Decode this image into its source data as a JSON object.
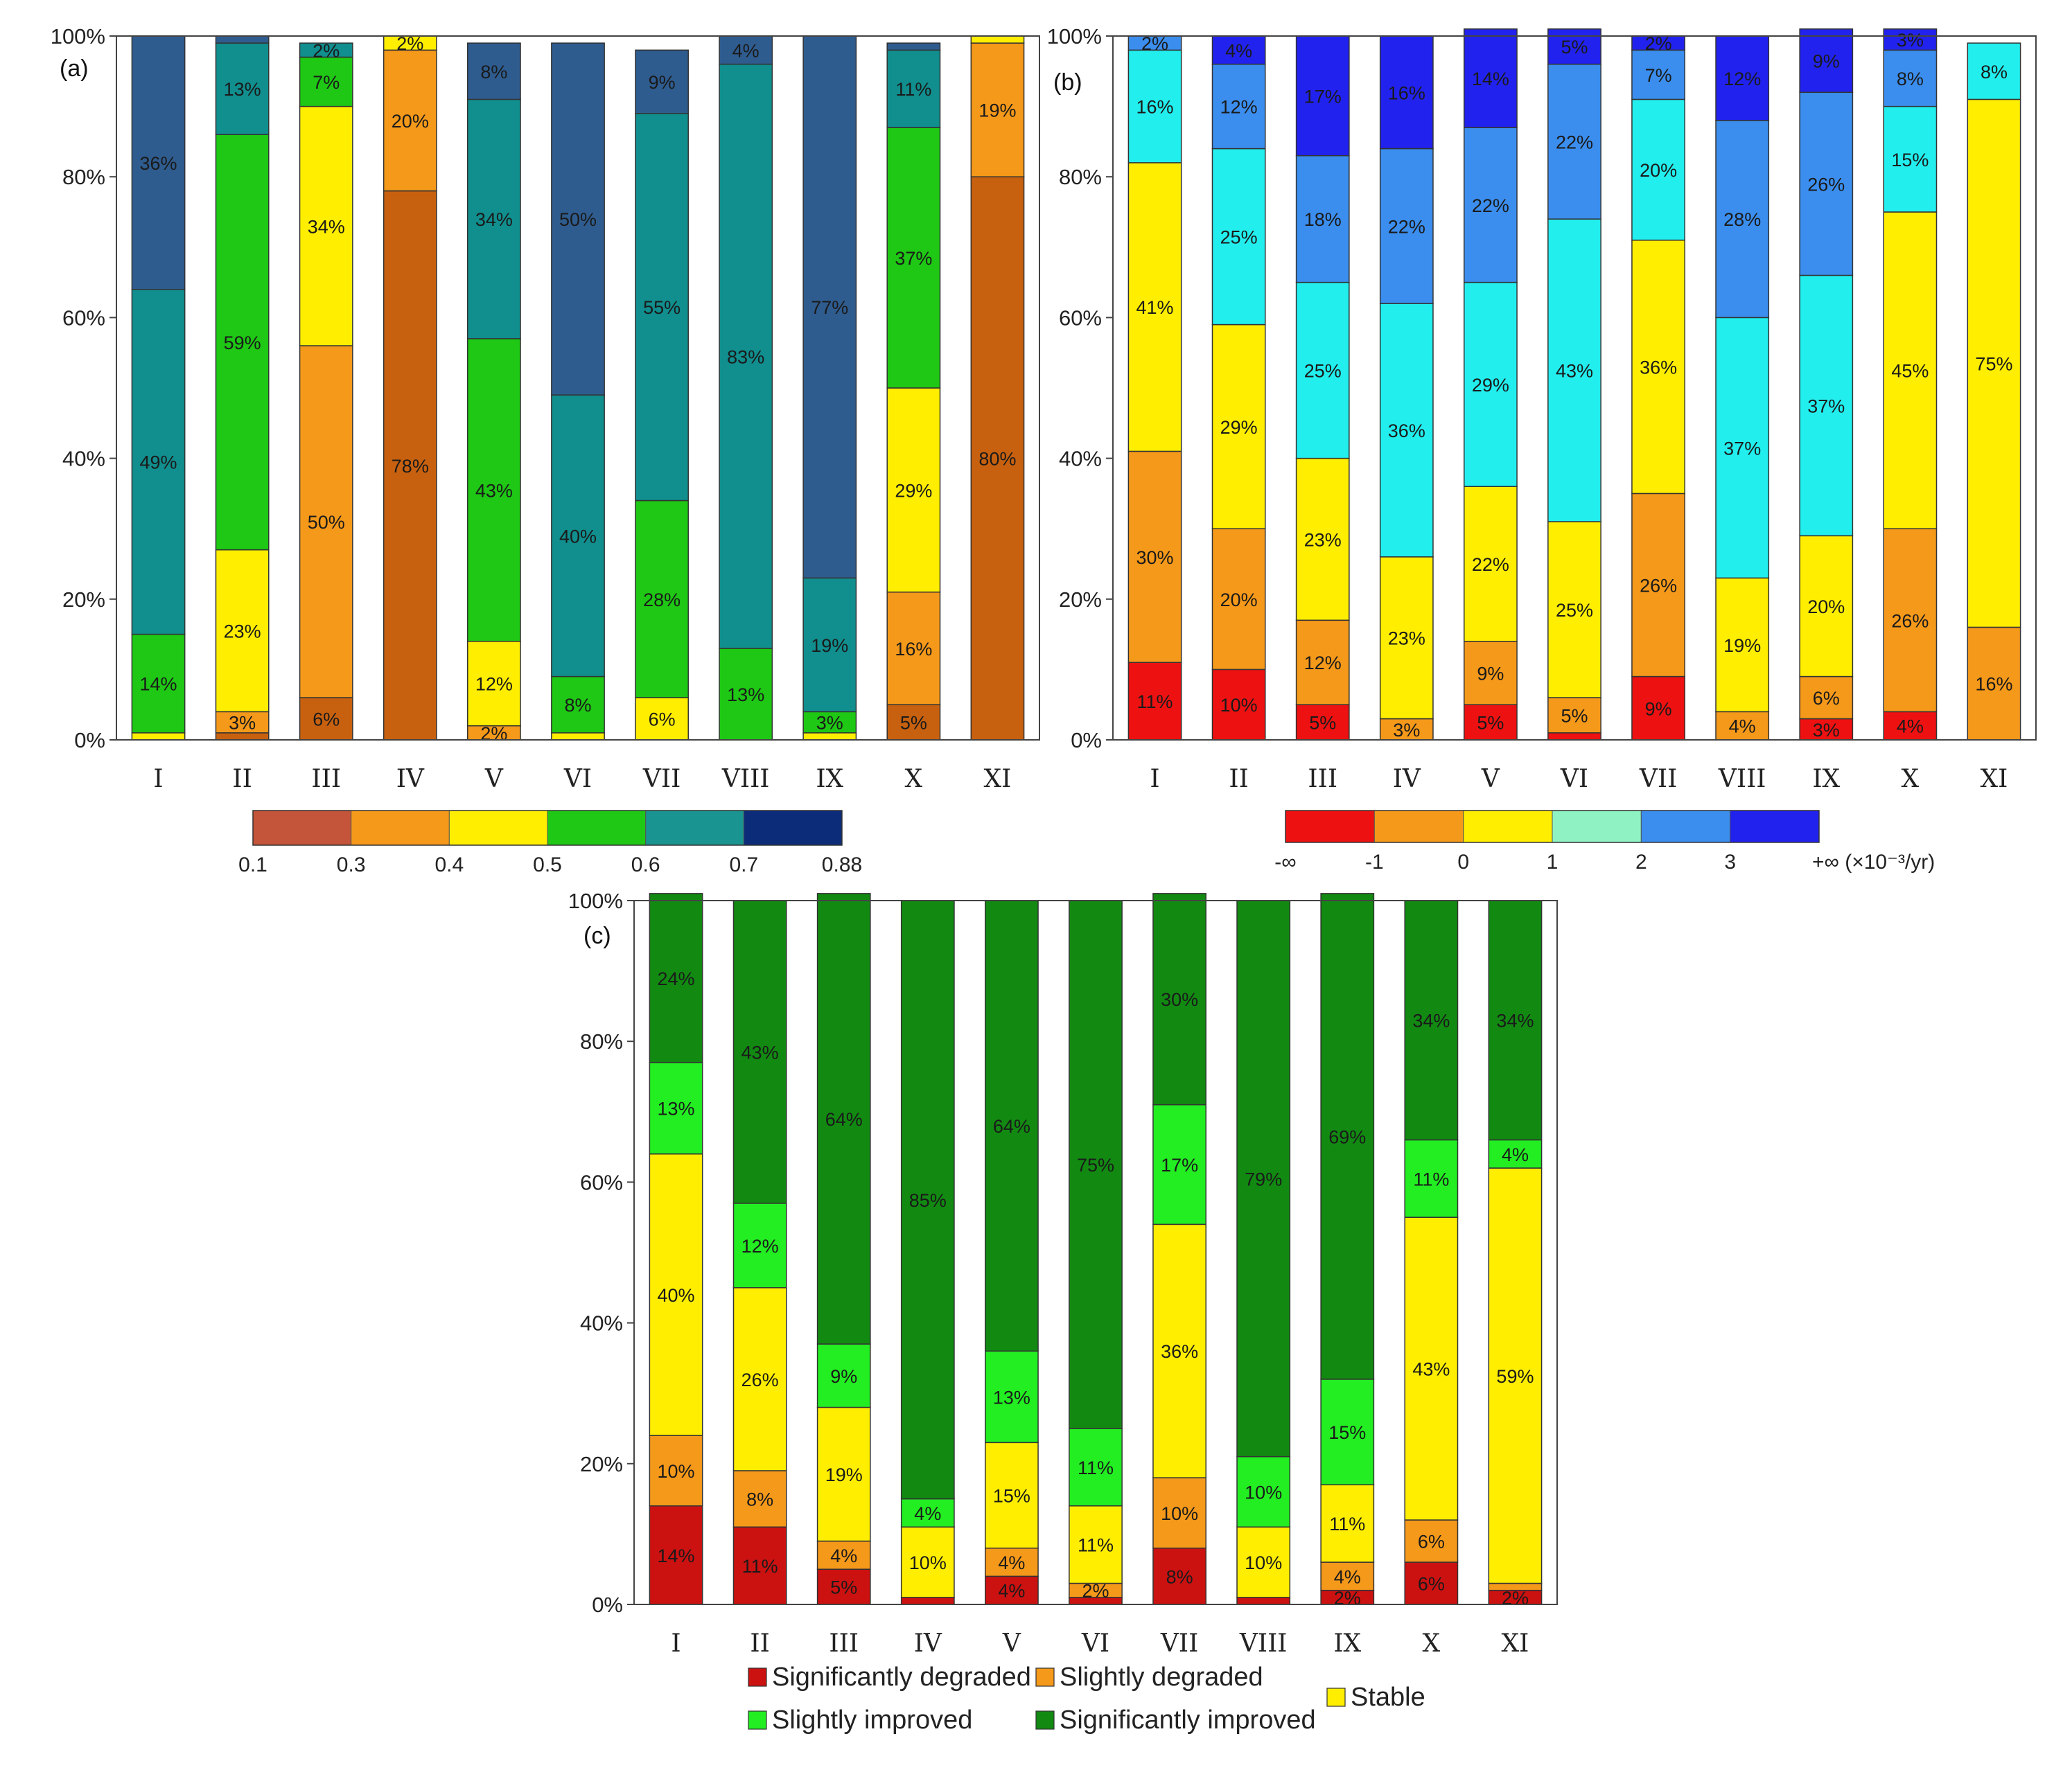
{
  "chart_data": [
    {
      "panel_label": "(a)",
      "type": "bar",
      "stacked": true,
      "categories": [
        "I",
        "II",
        "III",
        "IV",
        "V",
        "VI",
        "VII",
        "VIII",
        "IX",
        "X",
        "XI"
      ],
      "yticks": [
        "0%",
        "20%",
        "40%",
        "60%",
        "80%",
        "100%"
      ],
      "ylim": [
        0,
        100
      ],
      "series": [
        {
          "color": "#c8610f",
          "values": [
            0,
            1,
            6,
            78,
            0,
            0,
            0,
            0,
            0,
            5,
            80
          ],
          "labels": [
            "",
            "",
            "6%",
            "78%",
            "",
            "",
            "",
            "",
            "",
            "5%",
            "80%"
          ]
        },
        {
          "color": "#f5991a",
          "values": [
            0,
            3,
            50,
            20,
            2,
            0,
            0,
            0,
            0,
            16,
            19
          ],
          "labels": [
            "",
            "3%",
            "50%",
            "20%",
            "2%",
            "",
            "",
            "",
            "",
            "16%",
            "19%"
          ]
        },
        {
          "color": "#ffee00",
          "values": [
            1,
            23,
            34,
            2,
            12,
            1,
            6,
            0,
            1,
            29,
            1
          ],
          "labels": [
            "",
            "23%",
            "34%",
            "2%",
            "12%",
            "",
            "6%",
            "",
            "",
            "29%",
            ""
          ]
        },
        {
          "color": "#1ec814",
          "values": [
            14,
            59,
            7,
            0,
            43,
            8,
            28,
            13,
            3,
            37,
            0
          ],
          "labels": [
            "14%",
            "59%",
            "7%",
            "",
            "43%",
            "8%",
            "28%",
            "13%",
            "3%",
            "37%",
            ""
          ]
        },
        {
          "color": "#118e8e",
          "values": [
            49,
            13,
            2,
            0,
            34,
            40,
            55,
            83,
            19,
            11,
            0
          ],
          "labels": [
            "49%",
            "13%",
            "2%",
            "",
            "34%",
            "40%",
            "55%",
            "83%",
            "19%",
            "11%",
            ""
          ]
        },
        {
          "color": "#2f5c8f",
          "values": [
            36,
            1,
            0,
            0,
            8,
            50,
            9,
            4,
            77,
            1,
            0
          ],
          "labels": [
            "36%",
            "",
            "",
            "",
            "8%",
            "50%",
            "9%",
            "4%",
            "77%",
            "",
            ""
          ]
        }
      ],
      "colorbar": {
        "colors": [
          "#c4553a",
          "#f5991a",
          "#ffee00",
          "#1ec814",
          "#1a9490",
          "#0c2c7a"
        ],
        "ticks": [
          "0.1",
          "0.3",
          "0.4",
          "0.5",
          "0.6",
          "0.7",
          "0.88"
        ]
      }
    },
    {
      "panel_label": "(b)",
      "type": "bar",
      "stacked": true,
      "categories": [
        "I",
        "II",
        "III",
        "IV",
        "V",
        "VI",
        "VII",
        "VIII",
        "IX",
        "X",
        "XI"
      ],
      "yticks": [
        "0%",
        "20%",
        "40%",
        "60%",
        "80%",
        "100%"
      ],
      "ylim": [
        0,
        100
      ],
      "series": [
        {
          "color": "#ee1111",
          "values": [
            11,
            10,
            5,
            0,
            5,
            1,
            9,
            0,
            3,
            4,
            0
          ],
          "labels": [
            "11%",
            "10%",
            "5%",
            "",
            "5%",
            "",
            "9%",
            "",
            "3%",
            "4%",
            ""
          ]
        },
        {
          "color": "#f5991a",
          "values": [
            30,
            20,
            12,
            3,
            9,
            5,
            26,
            4,
            6,
            26,
            16
          ],
          "labels": [
            "30%",
            "20%",
            "12%",
            "3%",
            "9%",
            "5%",
            "26%",
            "4%",
            "6%",
            "26%",
            "16%"
          ]
        },
        {
          "color": "#ffee00",
          "values": [
            41,
            29,
            23,
            23,
            22,
            25,
            36,
            19,
            20,
            45,
            75
          ],
          "labels": [
            "41%",
            "29%",
            "23%",
            "23%",
            "22%",
            "25%",
            "36%",
            "19%",
            "20%",
            "45%",
            "75%"
          ]
        },
        {
          "color": "#22eeee",
          "values": [
            16,
            25,
            25,
            36,
            29,
            43,
            20,
            37,
            37,
            15,
            8
          ],
          "labels": [
            "16%",
            "25%",
            "25%",
            "36%",
            "29%",
            "43%",
            "20%",
            "37%",
            "37%",
            "15%",
            "8%"
          ]
        },
        {
          "color": "#3b8eee",
          "values": [
            2,
            12,
            18,
            22,
            22,
            22,
            7,
            28,
            26,
            8,
            0
          ],
          "labels": [
            "2%",
            "12%",
            "18%",
            "22%",
            "22%",
            "22%",
            "7%",
            "28%",
            "26%",
            "8%",
            ""
          ]
        },
        {
          "color": "#2222ee",
          "values": [
            0,
            4,
            17,
            16,
            14,
            5,
            2,
            12,
            9,
            3,
            0
          ],
          "labels": [
            "",
            "4%",
            "17%",
            "16%",
            "14%",
            "5%",
            "2%",
            "12%",
            "9%",
            "3%",
            ""
          ]
        }
      ],
      "colorbar": {
        "colors": [
          "#ee1111",
          "#f5991a",
          "#ffee00",
          "#8ff2c2",
          "#3b8eee",
          "#2222ee"
        ],
        "ticks": [
          "-∞",
          "-1",
          "0",
          "1",
          "2",
          "3",
          "+∞ (×10⁻³/yr)"
        ]
      }
    },
    {
      "panel_label": "(c)",
      "type": "bar",
      "stacked": true,
      "categories": [
        "I",
        "II",
        "III",
        "IV",
        "V",
        "VI",
        "VII",
        "VIII",
        "IX",
        "X",
        "XI"
      ],
      "yticks": [
        "0%",
        "20%",
        "40%",
        "60%",
        "80%",
        "100%"
      ],
      "ylim": [
        0,
        100
      ],
      "series": [
        {
          "name": "Significantly degraded",
          "color": "#cc1111",
          "values": [
            14,
            11,
            5,
            1,
            4,
            1,
            8,
            1,
            2,
            6,
            2
          ],
          "labels": [
            "14%",
            "11%",
            "5%",
            "",
            "4%",
            "",
            "8%",
            "",
            "2%",
            "6%",
            "2%"
          ]
        },
        {
          "name": "Slightly degraded",
          "color": "#f5991a",
          "values": [
            10,
            8,
            4,
            0,
            4,
            2,
            10,
            0,
            4,
            6,
            1
          ],
          "labels": [
            "10%",
            "8%",
            "4%",
            "",
            "4%",
            "2%",
            "10%",
            "",
            "4%",
            "6%",
            ""
          ]
        },
        {
          "name": "Stable",
          "color": "#ffee00",
          "values": [
            40,
            26,
            19,
            10,
            15,
            11,
            36,
            10,
            11,
            43,
            59
          ],
          "labels": [
            "40%",
            "26%",
            "19%",
            "10%",
            "15%",
            "11%",
            "36%",
            "10%",
            "11%",
            "43%",
            "59%"
          ]
        },
        {
          "name": "Slightly improved",
          "color": "#22ee22",
          "values": [
            13,
            12,
            9,
            4,
            13,
            11,
            17,
            10,
            15,
            11,
            4
          ],
          "labels": [
            "13%",
            "12%",
            "9%",
            "4%",
            "13%",
            "11%",
            "17%",
            "10%",
            "15%",
            "11%",
            "4%"
          ]
        },
        {
          "name": "Significantly improved",
          "color": "#128a12",
          "values": [
            24,
            43,
            64,
            85,
            64,
            75,
            30,
            79,
            69,
            34,
            34
          ],
          "labels": [
            "24%",
            "43%",
            "64%",
            "85%",
            "64%",
            "75%",
            "30%",
            "79%",
            "69%",
            "34%",
            "34%"
          ]
        }
      ]
    }
  ]
}
